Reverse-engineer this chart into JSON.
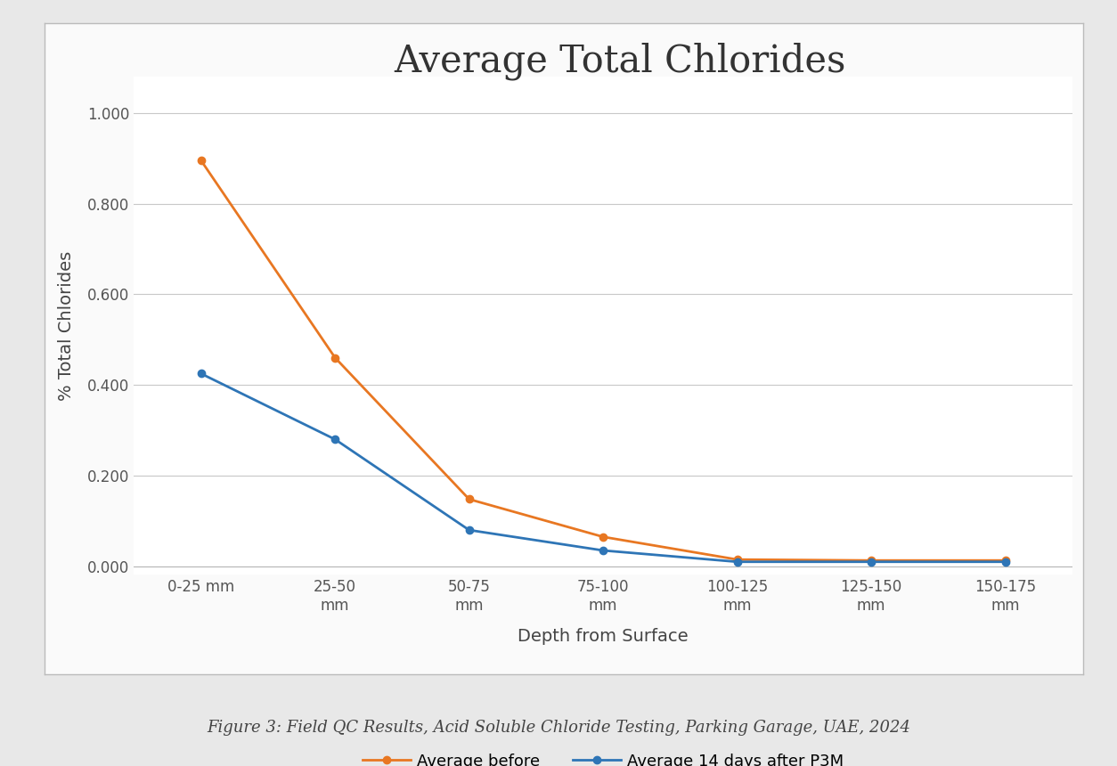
{
  "title": "Average Total Chlorides",
  "xlabel": "Depth from Surface",
  "ylabel": "% Total Chlorides",
  "categories": [
    "0-25 mm",
    "25-50\nmm",
    "50-75\nmm",
    "75-100\nmm",
    "100-125\nmm",
    "125-150\nmm",
    "150-175\nmm"
  ],
  "avg_before": [
    0.895,
    0.46,
    0.148,
    0.065,
    0.015,
    0.013,
    0.013
  ],
  "avg_after": [
    0.425,
    0.28,
    0.08,
    0.035,
    0.01,
    0.01,
    0.01
  ],
  "color_before": "#E87722",
  "color_after": "#2E75B6",
  "ylim": [
    -0.018,
    1.08
  ],
  "yticks": [
    0.0,
    0.2,
    0.4,
    0.6,
    0.8,
    1.0
  ],
  "legend_before": "Average before",
  "legend_after": "Average 14 days after P3M",
  "title_fontsize": 30,
  "axis_label_fontsize": 14,
  "tick_fontsize": 12,
  "legend_fontsize": 13,
  "caption": "Figure 3: Field QC Results, Acid Soluble Chloride Testing, Parking Garage, UAE, 2024",
  "caption_fontsize": 13,
  "outer_bg": "#E8E8E8",
  "box_bg": "#FAFAFA",
  "plot_bg": "#FFFFFF",
  "grid_color": "#C8C8C8"
}
